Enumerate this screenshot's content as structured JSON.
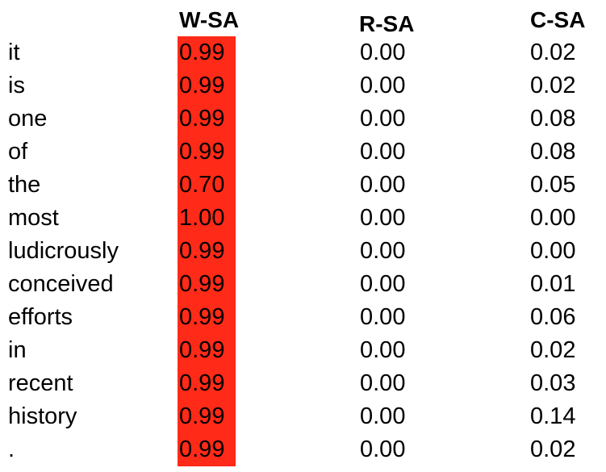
{
  "table": {
    "header": [
      "W-SA",
      "R-SA",
      "C-SA"
    ],
    "rows": [
      [
        "it",
        "0.99",
        "0.00",
        "0.02"
      ],
      [
        "is",
        "0.99",
        "0.00",
        "0.02"
      ],
      [
        "one",
        "0.99",
        "0.00",
        "0.08"
      ],
      [
        "of",
        "0.99",
        "0.00",
        "0.08"
      ],
      [
        "the",
        "0.70",
        "0.00",
        "0.05"
      ],
      [
        "most",
        "1.00",
        "0.00",
        "0.00"
      ],
      [
        "ludicrously",
        "0.99",
        "0.00",
        "0.00"
      ],
      [
        "conceived",
        "0.99",
        "0.00",
        "0.01"
      ],
      [
        "efforts",
        "0.99",
        "0.00",
        "0.06"
      ],
      [
        "in",
        "0.99",
        "0.00",
        "0.02"
      ],
      [
        "recent",
        "0.99",
        "0.00",
        "0.03"
      ],
      [
        "history",
        "0.99",
        "0.00",
        "0.14"
      ],
      [
        ".",
        "0.99",
        "0.00",
        "0.02"
      ]
    ]
  }
}
